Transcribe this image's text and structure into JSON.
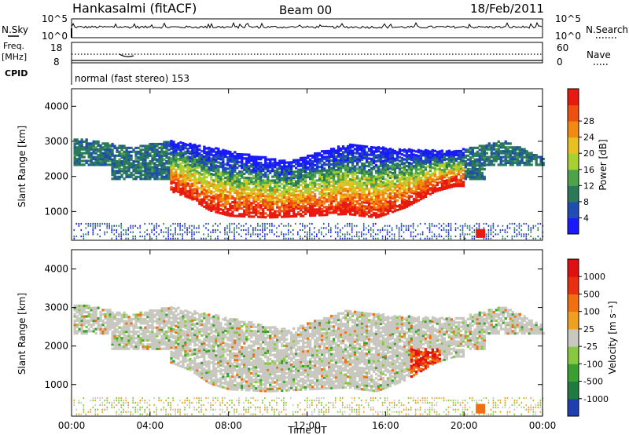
{
  "header": {
    "station": "Hankasalmi (fitACF)",
    "beam": "Beam 00",
    "date": "18/Feb/2011"
  },
  "sky_panel": {
    "left_label": "N.Sky",
    "right_label": "N.Search",
    "ticks_left": [
      "10^5",
      "10^0"
    ],
    "ticks_right": [
      "10^5",
      "10^0"
    ]
  },
  "freq_panel": {
    "left_label_1": "Freq.",
    "left_label_2": "[MHz]",
    "right_label": "Nave",
    "ticks_left": [
      "18",
      "8"
    ],
    "ticks_right": [
      "60",
      "0"
    ]
  },
  "cpid": {
    "label": "CPID",
    "value": "normal (fast stereo) 153"
  },
  "chart_data": [
    {
      "type": "heatmap",
      "name_label": "power",
      "xlabel": "Time UT",
      "ylabel": "Slant Range [km]",
      "xlim_hours": [
        0,
        24
      ],
      "ylim": [
        180,
        4500
      ],
      "yticks": [
        "1000",
        "2000",
        "3000",
        "4000"
      ],
      "colorbar_label": "Power [dB]",
      "colorbar_ticks": [
        "4",
        "8",
        "12",
        "16",
        "20",
        "24",
        "28"
      ],
      "colors": [
        "#1a1aff",
        "#1f4db3",
        "#2a7a5a",
        "#4ea34a",
        "#a8d030",
        "#e8c020",
        "#f08a10",
        "#ee5010",
        "#e81a10"
      ],
      "inner_band_km": [
        [
          5.0,
          1700
        ],
        [
          6.0,
          1500
        ],
        [
          7.0,
          1150
        ],
        [
          8.0,
          1000
        ],
        [
          10.0,
          950
        ],
        [
          12.0,
          1000
        ],
        [
          14.0,
          1050
        ],
        [
          15.5,
          950
        ],
        [
          17.0,
          1250
        ],
        [
          18.5,
          1700
        ],
        [
          19.5,
          1850
        ]
      ],
      "outer_band_km": [
        [
          0.5,
          3050
        ],
        [
          3.0,
          2800
        ],
        [
          5.0,
          3000
        ],
        [
          8.0,
          2700
        ],
        [
          11.0,
          2400
        ],
        [
          14.0,
          2900
        ],
        [
          16.5,
          2750
        ],
        [
          19.5,
          2700
        ],
        [
          22.0,
          3000
        ],
        [
          24.0,
          2500
        ]
      ]
    },
    {
      "type": "heatmap",
      "name_label": "velocity",
      "xlabel": "Time UT",
      "ylabel": "Slant Range [km]",
      "xlim_hours": [
        0,
        24
      ],
      "ylim": [
        180,
        4500
      ],
      "yticks": [
        "1000",
        "2000",
        "3000",
        "4000"
      ],
      "colorbar_label": "Velocity [m s⁻¹]",
      "colorbar_ticks": [
        "1000",
        "500",
        "100",
        "25",
        "-25",
        "-100",
        "-500",
        "-1000"
      ],
      "colors": [
        "#1f3fb0",
        "#1f7a40",
        "#3aa030",
        "#86c840",
        "#c8c8c0",
        "#f0a020",
        "#f07010",
        "#e83010",
        "#e01010"
      ]
    }
  ],
  "time_axis": {
    "label": "Time UT",
    "ticks": [
      "00:00",
      "04:00",
      "08:00",
      "12:00",
      "16:00",
      "20:00",
      "00:00"
    ]
  }
}
